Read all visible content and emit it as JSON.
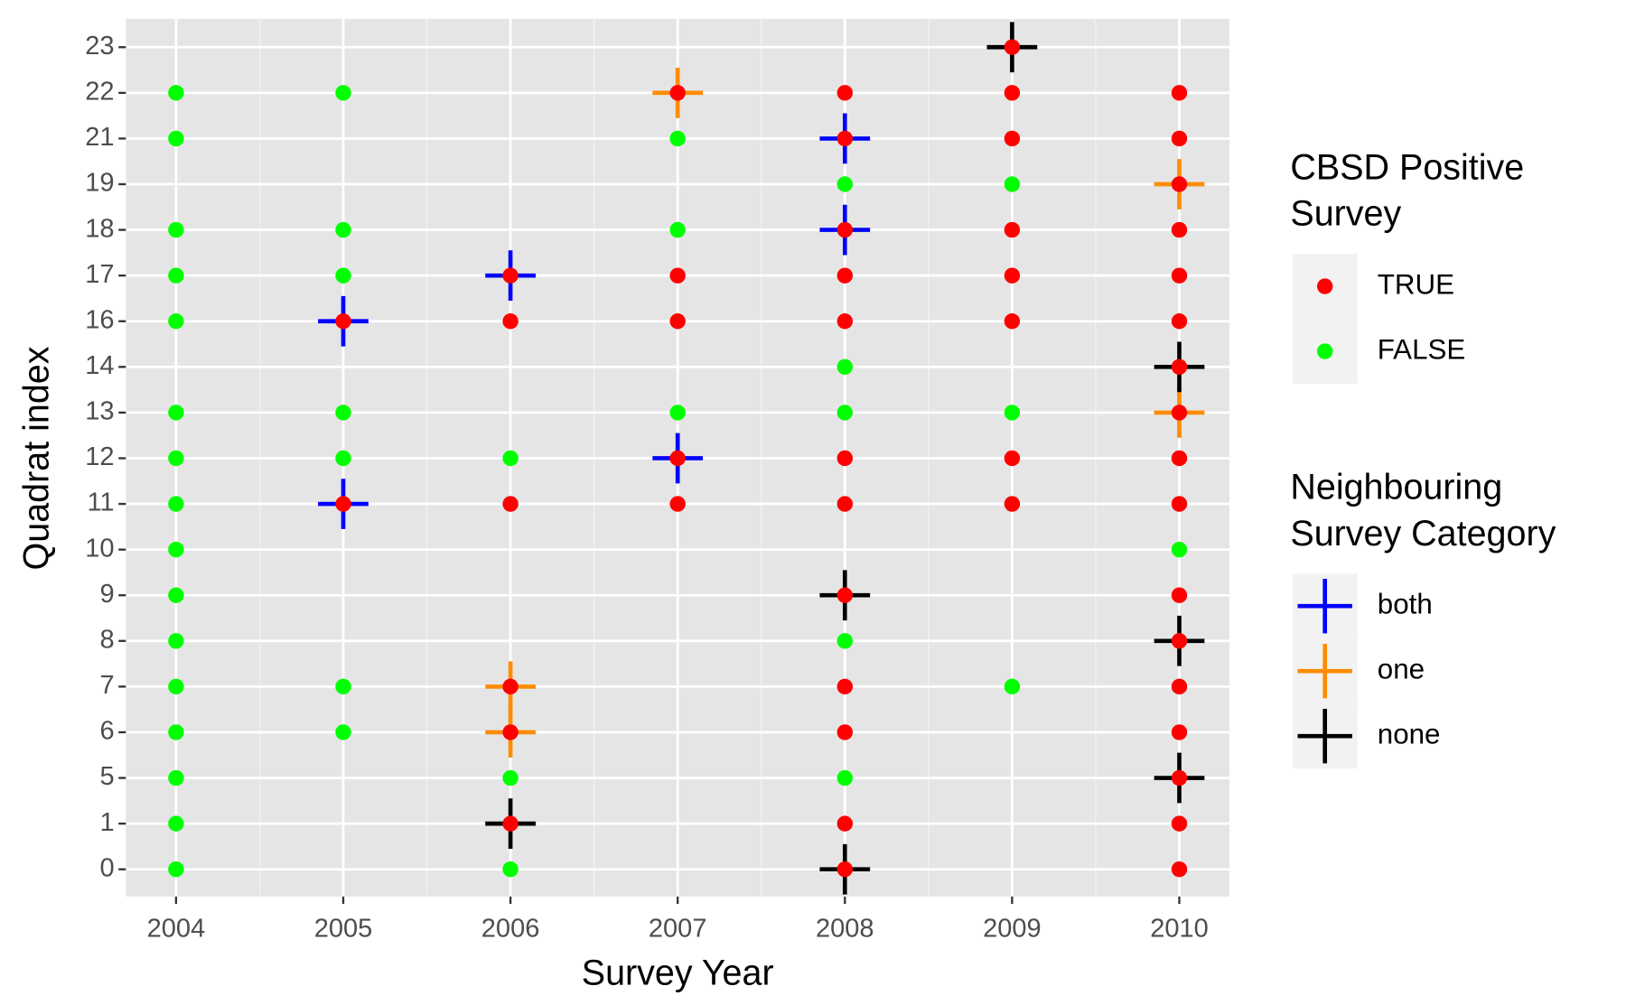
{
  "chart_data": {
    "type": "scatter",
    "x_label": "Survey Year",
    "y_label": "Quadrat index",
    "xlim": [
      2003.7,
      2010.3
    ],
    "xticks": [
      2004,
      2005,
      2006,
      2007,
      2008,
      2009,
      2010
    ],
    "y_categories": [
      0,
      1,
      5,
      6,
      7,
      8,
      9,
      10,
      11,
      12,
      13,
      14,
      16,
      17,
      18,
      19,
      21,
      22,
      23
    ],
    "grid": true,
    "legends": [
      {
        "title": [
          "CBSD Positive",
          "Survey"
        ],
        "series": [
          3,
          4
        ]
      },
      {
        "title": [
          "Neighbouring",
          "Survey Category"
        ],
        "series": [
          0,
          1,
          2
        ]
      }
    ],
    "series": [
      {
        "name": "both",
        "color": "#0000ff",
        "marker": "cross",
        "x": [
          2005,
          2005,
          2006,
          2007,
          2008,
          2008
        ],
        "values": [
          16,
          11,
          17,
          12,
          21,
          18
        ]
      },
      {
        "name": "one",
        "color": "#ff8c00",
        "marker": "cross",
        "x": [
          2006,
          2006,
          2007,
          2010,
          2010
        ],
        "values": [
          7,
          6,
          22,
          19,
          13
        ]
      },
      {
        "name": "none",
        "color": "#000000",
        "marker": "cross",
        "x": [
          2006,
          2008,
          2008,
          2009,
          2010,
          2010,
          2010
        ],
        "values": [
          1,
          9,
          0,
          23,
          14,
          8,
          5
        ]
      },
      {
        "name": "TRUE",
        "color": "#ff0000",
        "marker": "dot",
        "x": [
          2005,
          2005,
          2006,
          2006,
          2006,
          2006,
          2006,
          2006,
          2007,
          2007,
          2007,
          2007,
          2007,
          2008,
          2008,
          2008,
          2008,
          2008,
          2008,
          2008,
          2008,
          2008,
          2008,
          2008,
          2008,
          2009,
          2009,
          2009,
          2009,
          2009,
          2009,
          2009,
          2009,
          2010,
          2010,
          2010,
          2010,
          2010,
          2010,
          2010,
          2010,
          2010,
          2010,
          2010,
          2010,
          2010,
          2010,
          2010,
          2010,
          2010
        ],
        "values": [
          16,
          11,
          17,
          16,
          11,
          7,
          6,
          1,
          22,
          17,
          16,
          12,
          11,
          22,
          21,
          18,
          17,
          16,
          12,
          11,
          9,
          7,
          6,
          1,
          0,
          23,
          22,
          21,
          18,
          17,
          16,
          12,
          11,
          22,
          21,
          19,
          18,
          17,
          16,
          14,
          13,
          12,
          11,
          9,
          8,
          7,
          6,
          5,
          1,
          0
        ]
      },
      {
        "name": "FALSE",
        "color": "#00ff00",
        "marker": "dot",
        "x": [
          2004,
          2004,
          2004,
          2004,
          2004,
          2004,
          2004,
          2004,
          2004,
          2004,
          2004,
          2004,
          2004,
          2004,
          2004,
          2004,
          2005,
          2005,
          2005,
          2005,
          2005,
          2005,
          2005,
          2006,
          2006,
          2006,
          2007,
          2007,
          2007,
          2008,
          2008,
          2008,
          2008,
          2008,
          2009,
          2009,
          2009,
          2010
        ],
        "values": [
          22,
          21,
          18,
          17,
          16,
          13,
          12,
          11,
          10,
          9,
          8,
          7,
          6,
          5,
          1,
          0,
          22,
          18,
          17,
          13,
          12,
          7,
          6,
          12,
          5,
          0,
          21,
          18,
          13,
          19,
          14,
          13,
          8,
          5,
          19,
          13,
          7,
          10
        ]
      }
    ]
  }
}
